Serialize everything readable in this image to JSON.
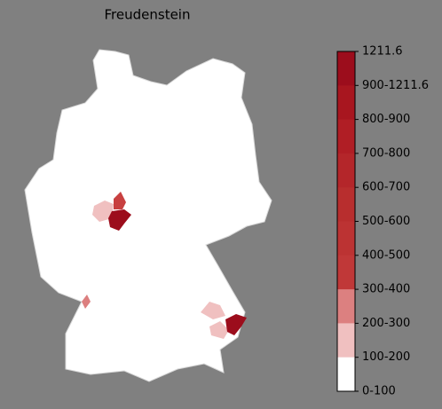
{
  "title": "Freudenstein",
  "colorbar": {
    "labels": [
      "1211.6",
      "900-1211.6",
      "800-900",
      "700-800",
      "600-700",
      "500-600",
      "400-500",
      "300-400",
      "200-300",
      "100-200",
      "0-100"
    ],
    "colors": [
      "#9c0d1c",
      "#a8161f",
      "#b01e25",
      "#b4262a",
      "#b82e2e",
      "#bc3333",
      "#c03838",
      "#dc8080",
      "#f0c0c0",
      "#ffffff"
    ]
  }
}
